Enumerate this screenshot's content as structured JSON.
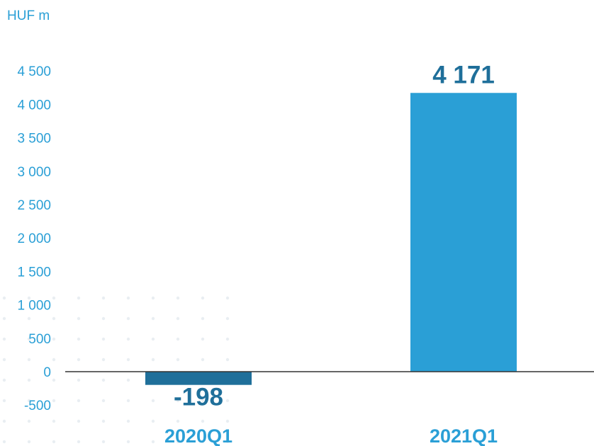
{
  "chart_data": {
    "type": "bar",
    "unit_label": "HUF m",
    "categories": [
      "2020Q1",
      "2021Q1"
    ],
    "values": [
      -198,
      4171
    ],
    "value_labels": [
      "-198",
      "4 171"
    ],
    "bar_colors": [
      "#1f6f9a",
      "#2a9fd6"
    ],
    "yticks": [
      {
        "value": -500,
        "label": "-500"
      },
      {
        "value": 0,
        "label": "0"
      },
      {
        "value": 500,
        "label": "500"
      },
      {
        "value": 1000,
        "label": "1 000"
      },
      {
        "value": 1500,
        "label": "1 500"
      },
      {
        "value": 2000,
        "label": "2 000"
      },
      {
        "value": 2500,
        "label": "2 500"
      },
      {
        "value": 3000,
        "label": "3 000"
      },
      {
        "value": 3500,
        "label": "3 500"
      },
      {
        "value": 4000,
        "label": "4 000"
      },
      {
        "value": 4500,
        "label": "4 500"
      }
    ],
    "ylim": [
      -500,
      4500
    ],
    "grid": false,
    "colors": {
      "tick_text": "#2a9fd6",
      "value_text": "#1f6f9a",
      "axis": "#333333",
      "dots": "#e9eef2"
    }
  }
}
